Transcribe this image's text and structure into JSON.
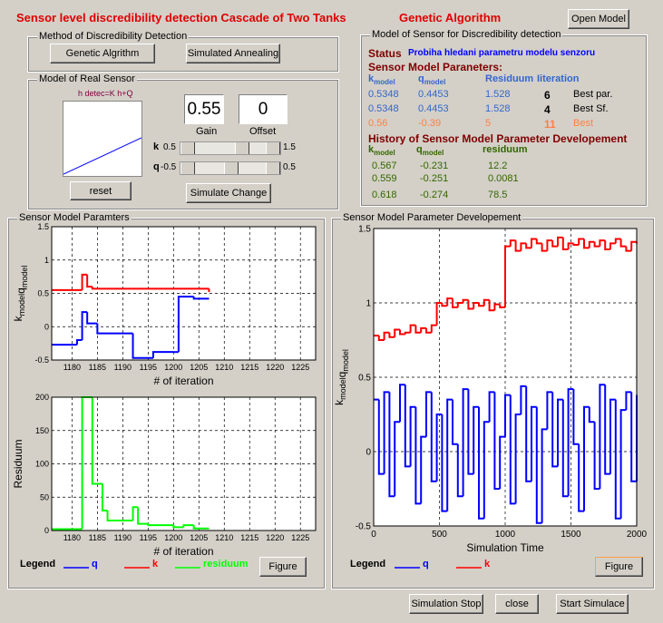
{
  "header": {
    "title": "Sensor level discredibility detection Cascade of Two Tanks",
    "algorithm": "Genetic Algorithm",
    "open_button": "Open Model"
  },
  "method_panel": {
    "title": "Method of Discredibility Detection",
    "buttons": [
      "Genetic Algrithm",
      "Simulated Annealing"
    ]
  },
  "real_sensor_panel": {
    "title": "Model of Real Sensor",
    "equation": "h detec=K h+Q",
    "gain_value": "0.55",
    "offset_value": "0",
    "gain_label": "Gain",
    "offset_label": "Offset",
    "sliders": [
      {
        "name": "k",
        "min": "0.5",
        "max": "1.5"
      },
      {
        "name": "q",
        "min": "-0.5",
        "max": "0.5"
      }
    ],
    "reset_button": "reset",
    "simulate_button": "Simulate Change"
  },
  "model_panel": {
    "title": "Model of Sensor for Discredibility detection",
    "status_label": "Status",
    "status_text": "Probiha hledani parametru modelu senzoru",
    "params_title": "Sensor Model Paraneters:",
    "headers": [
      {
        "main": "k",
        "sub": "model"
      },
      {
        "main": "q",
        "sub": "model"
      },
      "Residuum",
      "Iiteration"
    ],
    "rows": [
      [
        "0.5348",
        "0.4453",
        "1.528",
        "6",
        "Best par."
      ],
      [
        "0.5348",
        "0.4453",
        "1.528",
        "4",
        "Best Sf."
      ],
      [
        "0.56",
        "-0.39",
        "5",
        "11",
        "Best"
      ]
    ],
    "history_title": "History of Sensor Model Parameter Developement",
    "history_headers": [
      {
        "main": "k",
        "sub": "model"
      },
      {
        "main": "q",
        "sub": "model"
      },
      "residuum"
    ],
    "history_rows": [
      [
        "0.567",
        "-0.231",
        "12.2"
      ],
      [
        "0.559",
        "-0.251",
        "0.0081"
      ],
      [
        "0.618",
        "-0.274",
        "78.5"
      ]
    ]
  },
  "left_panel": {
    "title": "Sensor Model Paramters",
    "top_plot": {
      "xlim": [
        1176,
        1228
      ],
      "xticks": [
        1180,
        1185,
        1190,
        1195,
        1200,
        1205,
        1210,
        1215,
        1220,
        1225
      ],
      "ylim": [
        -0.5,
        1.5
      ],
      "yticks": [
        -0.5,
        0,
        0.5,
        1,
        1.5
      ],
      "grid": true,
      "drawstyle": "steps-post",
      "xlabel": "# of iteration",
      "ylabel": [
        {
          "main": "k",
          "sub": "model"
        },
        {
          "main": "q",
          "sub": "model"
        }
      ],
      "series": [
        {
          "name": "k",
          "color": "#ff0000",
          "x": [
            1176,
            1182,
            1183,
            1184,
            1207
          ],
          "y": [
            0.55,
            0.78,
            0.6,
            0.57,
            0.52
          ]
        },
        {
          "name": "q",
          "color": "#0000ff",
          "x": [
            1176,
            1181,
            1182,
            1183,
            1185,
            1187,
            1192,
            1196,
            1200,
            1201,
            1204,
            1207
          ],
          "y": [
            -0.27,
            -0.2,
            0.22,
            0.05,
            -0.1,
            -0.1,
            -0.47,
            -0.38,
            -0.38,
            0.45,
            0.42,
            0.42
          ]
        }
      ]
    },
    "bottom_plot": {
      "xlim": [
        1176,
        1228
      ],
      "xticks": [
        1180,
        1185,
        1190,
        1195,
        1200,
        1205,
        1210,
        1215,
        1220,
        1225
      ],
      "ylim": [
        0,
        200
      ],
      "yticks": [
        0,
        50,
        100,
        150,
        200
      ],
      "grid": true,
      "drawstyle": "steps-post",
      "xlabel": "# of iteration",
      "ylabel": "Residuum",
      "series": [
        {
          "name": "residuum",
          "color": "#00ff00",
          "x": [
            1176,
            1182,
            1183,
            1184,
            1186,
            1187,
            1188,
            1192,
            1193,
            1195,
            1198,
            1200,
            1202,
            1204,
            1207
          ],
          "y": [
            2,
            200,
            200,
            70,
            30,
            15,
            15,
            35,
            10,
            8,
            8,
            5,
            8,
            3,
            3
          ]
        }
      ]
    },
    "legend": {
      "label": "Legend",
      "items": [
        {
          "name": "q",
          "color": "#0000ff"
        },
        {
          "name": "k",
          "color": "#ff0000"
        },
        {
          "name": "residuum",
          "color": "#00ff00"
        }
      ]
    },
    "figure_button": "Figure"
  },
  "right_panel": {
    "title": "Sensor Model Parameter Developement",
    "plot": {
      "xlim": [
        0,
        2000
      ],
      "xticks": [
        0,
        500,
        1000,
        1500,
        2000
      ],
      "ylim": [
        -0.5,
        1.5
      ],
      "yticks": [
        -0.5,
        0,
        0.5,
        1,
        1.5
      ],
      "grid": true,
      "drawstyle": "steps-post",
      "xlabel": "Simulation Time",
      "ylabel": [
        {
          "main": "k",
          "sub": "model"
        },
        {
          "main": "q",
          "sub": "model"
        }
      ],
      "series": [
        {
          "name": "k",
          "color": "#ff0000",
          "x": [
            0,
            40,
            80,
            120,
            160,
            200,
            240,
            280,
            320,
            360,
            400,
            440,
            480,
            520,
            560,
            600,
            640,
            680,
            720,
            760,
            800,
            840,
            880,
            920,
            960,
            1000,
            1040,
            1080,
            1120,
            1160,
            1200,
            1240,
            1280,
            1320,
            1360,
            1400,
            1440,
            1480,
            1520,
            1560,
            1600,
            1640,
            1680,
            1720,
            1760,
            1800,
            1840,
            1880,
            1920,
            1960,
            2000
          ],
          "y": [
            0.78,
            0.75,
            0.8,
            0.77,
            0.82,
            0.79,
            0.8,
            0.85,
            0.8,
            0.83,
            0.8,
            0.85,
            1.0,
            0.98,
            1.03,
            0.97,
            1.0,
            1.02,
            0.96,
            1.0,
            0.98,
            1.02,
            0.95,
            0.99,
            0.97,
            1.38,
            1.42,
            1.35,
            1.4,
            1.37,
            1.43,
            1.4,
            1.35,
            1.42,
            1.38,
            1.44,
            1.36,
            1.4,
            1.39,
            1.43,
            1.37,
            1.41,
            1.38,
            1.42,
            1.36,
            1.4,
            1.43,
            1.38,
            1.35,
            1.41,
            1.4
          ]
        },
        {
          "name": "q",
          "color": "#0000ff",
          "x": [
            0,
            40,
            80,
            120,
            160,
            200,
            240,
            280,
            320,
            360,
            400,
            440,
            480,
            520,
            560,
            600,
            640,
            680,
            720,
            760,
            800,
            840,
            880,
            920,
            960,
            1000,
            1040,
            1080,
            1120,
            1160,
            1200,
            1240,
            1280,
            1320,
            1360,
            1400,
            1440,
            1480,
            1520,
            1560,
            1600,
            1640,
            1680,
            1720,
            1760,
            1800,
            1840,
            1880,
            1920,
            1960,
            2000
          ],
          "y": [
            0.35,
            -0.15,
            0.4,
            -0.3,
            0.2,
            0.45,
            -0.1,
            0.3,
            -0.35,
            0.1,
            0.4,
            -0.2,
            0.25,
            -0.4,
            0.35,
            0.05,
            -0.3,
            0.42,
            -0.15,
            0.3,
            -0.45,
            0.2,
            0.4,
            -0.25,
            0.1,
            0.38,
            -0.35,
            0.25,
            0.44,
            -0.2,
            0.3,
            -0.48,
            0.15,
            0.4,
            -0.1,
            0.35,
            -0.3,
            0.42,
            0.05,
            -0.4,
            0.3,
            0.2,
            -0.25,
            0.45,
            -0.15,
            0.35,
            -0.45,
            0.28,
            0.4,
            -0.2,
            0.38
          ]
        }
      ]
    },
    "legend": {
      "label": "Legend",
      "items": [
        {
          "name": "q",
          "color": "#0000ff"
        },
        {
          "name": "k",
          "color": "#ff0000"
        }
      ]
    },
    "figure_button": "Figure"
  },
  "footer": {
    "buttons": [
      "Simulation Stop",
      "close",
      "Start Simulace"
    ]
  }
}
